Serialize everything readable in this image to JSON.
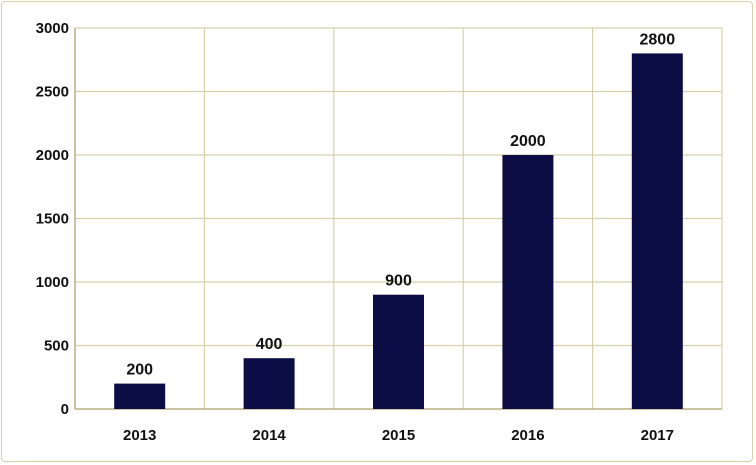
{
  "chart_data": {
    "type": "bar",
    "categories": [
      "2013",
      "2014",
      "2015",
      "2016",
      "2017"
    ],
    "values": [
      200,
      400,
      900,
      2000,
      2800
    ],
    "data_labels": [
      "200",
      "400",
      "900",
      "2000",
      "2800"
    ],
    "ylim": [
      0,
      3000
    ],
    "yticks": [
      0,
      500,
      1000,
      1500,
      2000,
      2500,
      3000
    ],
    "ytick_labels": [
      "0",
      "500",
      "1000",
      "1500",
      "2000",
      "2500",
      "3000"
    ],
    "grid": true,
    "legend": "none",
    "colors": {
      "bar": "#0d0d45",
      "grid": "#d8d0aa",
      "axis": "#b8ad80"
    }
  }
}
